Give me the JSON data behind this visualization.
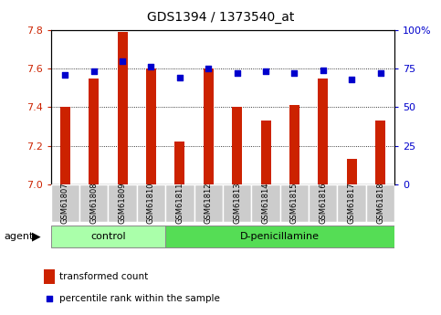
{
  "title": "GDS1394 / 1373540_at",
  "samples": [
    "GSM61807",
    "GSM61808",
    "GSM61809",
    "GSM61810",
    "GSM61811",
    "GSM61812",
    "GSM61813",
    "GSM61814",
    "GSM61815",
    "GSM61816",
    "GSM61817",
    "GSM61818"
  ],
  "transformed_count": [
    7.4,
    7.55,
    7.79,
    7.6,
    7.22,
    7.6,
    7.4,
    7.33,
    7.41,
    7.55,
    7.13,
    7.33
  ],
  "percentile_rank": [
    71,
    73,
    80,
    76,
    69,
    75,
    72,
    73,
    72,
    74,
    68,
    72
  ],
  "control_indices": [
    0,
    1,
    2,
    3
  ],
  "treatment_indices": [
    4,
    5,
    6,
    7,
    8,
    9,
    10,
    11
  ],
  "control_label": "control",
  "treatment_label": "D-penicillamine",
  "agent_label": "agent",
  "ylim_left": [
    7.0,
    7.8
  ],
  "ylim_right": [
    0,
    100
  ],
  "yticks_left": [
    7.0,
    7.2,
    7.4,
    7.6,
    7.8
  ],
  "yticks_right": [
    0,
    25,
    50,
    75,
    100
  ],
  "bar_color": "#cc2200",
  "dot_color": "#0000cc",
  "control_bg": "#aaffaa",
  "treatment_bg": "#55dd55",
  "tick_bg": "#cccccc",
  "legend_bar_label": "transformed count",
  "legend_dot_label": "percentile rank within the sample",
  "bar_width": 0.35
}
